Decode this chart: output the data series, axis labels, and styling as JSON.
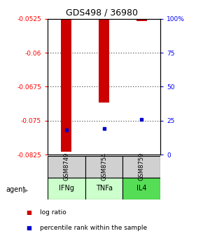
{
  "title": "GDS498 / 36980",
  "samples": [
    "GSM8749",
    "GSM8754",
    "GSM8759"
  ],
  "agents": [
    "IFNg",
    "TNFa",
    "IL4"
  ],
  "log_ratios": [
    -0.0818,
    -0.071,
    -0.053
  ],
  "percentile_ranks": [
    18,
    19,
    26
  ],
  "ymin": -0.0825,
  "ymax": -0.0525,
  "yticks_left": [
    -0.0525,
    -0.06,
    -0.0675,
    -0.075,
    -0.0825
  ],
  "yticks_right": [
    0,
    25,
    50,
    75,
    100
  ],
  "bar_color": "#cc0000",
  "percentile_color": "#0000cc",
  "sample_box_color": "#d0d0d0",
  "agent_box_colors": [
    "#ccffcc",
    "#ccffcc",
    "#55dd55"
  ]
}
